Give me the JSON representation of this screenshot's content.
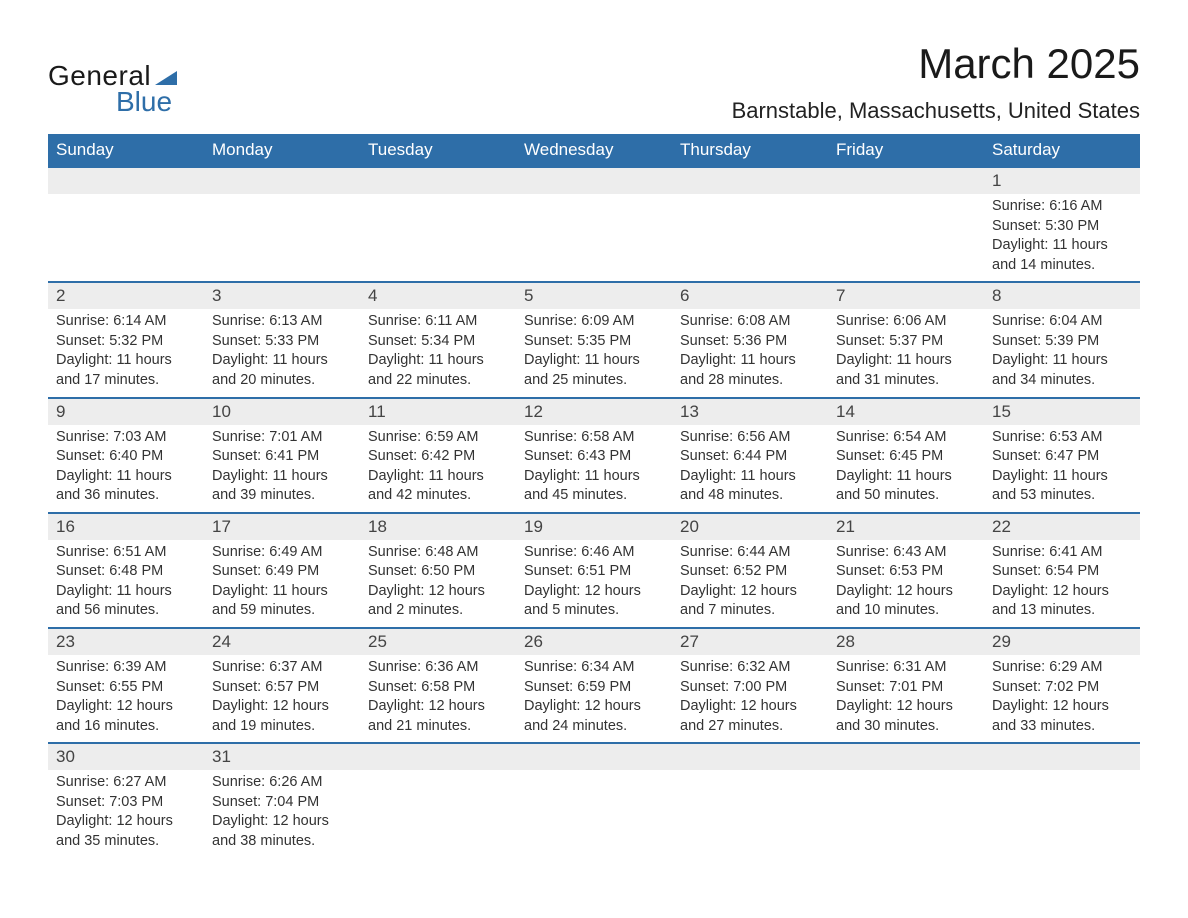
{
  "brand": {
    "word1": "General",
    "word2": "Blue",
    "accent_color": "#2e6ea8"
  },
  "title": "March 2025",
  "location": "Barnstable, Massachusetts, United States",
  "colors": {
    "header_bg": "#2e6ea8",
    "header_text": "#ffffff",
    "daynum_bg": "#ededed",
    "row_border": "#2e6ea8",
    "body_text": "#333333",
    "page_bg": "#ffffff"
  },
  "day_headers": [
    "Sunday",
    "Monday",
    "Tuesday",
    "Wednesday",
    "Thursday",
    "Friday",
    "Saturday"
  ],
  "weeks": [
    [
      null,
      null,
      null,
      null,
      null,
      null,
      {
        "n": "1",
        "sunrise": "6:16 AM",
        "sunset": "5:30 PM",
        "dl1": "Daylight: 11 hours",
        "dl2": "and 14 minutes."
      }
    ],
    [
      {
        "n": "2",
        "sunrise": "6:14 AM",
        "sunset": "5:32 PM",
        "dl1": "Daylight: 11 hours",
        "dl2": "and 17 minutes."
      },
      {
        "n": "3",
        "sunrise": "6:13 AM",
        "sunset": "5:33 PM",
        "dl1": "Daylight: 11 hours",
        "dl2": "and 20 minutes."
      },
      {
        "n": "4",
        "sunrise": "6:11 AM",
        "sunset": "5:34 PM",
        "dl1": "Daylight: 11 hours",
        "dl2": "and 22 minutes."
      },
      {
        "n": "5",
        "sunrise": "6:09 AM",
        "sunset": "5:35 PM",
        "dl1": "Daylight: 11 hours",
        "dl2": "and 25 minutes."
      },
      {
        "n": "6",
        "sunrise": "6:08 AM",
        "sunset": "5:36 PM",
        "dl1": "Daylight: 11 hours",
        "dl2": "and 28 minutes."
      },
      {
        "n": "7",
        "sunrise": "6:06 AM",
        "sunset": "5:37 PM",
        "dl1": "Daylight: 11 hours",
        "dl2": "and 31 minutes."
      },
      {
        "n": "8",
        "sunrise": "6:04 AM",
        "sunset": "5:39 PM",
        "dl1": "Daylight: 11 hours",
        "dl2": "and 34 minutes."
      }
    ],
    [
      {
        "n": "9",
        "sunrise": "7:03 AM",
        "sunset": "6:40 PM",
        "dl1": "Daylight: 11 hours",
        "dl2": "and 36 minutes."
      },
      {
        "n": "10",
        "sunrise": "7:01 AM",
        "sunset": "6:41 PM",
        "dl1": "Daylight: 11 hours",
        "dl2": "and 39 minutes."
      },
      {
        "n": "11",
        "sunrise": "6:59 AM",
        "sunset": "6:42 PM",
        "dl1": "Daylight: 11 hours",
        "dl2": "and 42 minutes."
      },
      {
        "n": "12",
        "sunrise": "6:58 AM",
        "sunset": "6:43 PM",
        "dl1": "Daylight: 11 hours",
        "dl2": "and 45 minutes."
      },
      {
        "n": "13",
        "sunrise": "6:56 AM",
        "sunset": "6:44 PM",
        "dl1": "Daylight: 11 hours",
        "dl2": "and 48 minutes."
      },
      {
        "n": "14",
        "sunrise": "6:54 AM",
        "sunset": "6:45 PM",
        "dl1": "Daylight: 11 hours",
        "dl2": "and 50 minutes."
      },
      {
        "n": "15",
        "sunrise": "6:53 AM",
        "sunset": "6:47 PM",
        "dl1": "Daylight: 11 hours",
        "dl2": "and 53 minutes."
      }
    ],
    [
      {
        "n": "16",
        "sunrise": "6:51 AM",
        "sunset": "6:48 PM",
        "dl1": "Daylight: 11 hours",
        "dl2": "and 56 minutes."
      },
      {
        "n": "17",
        "sunrise": "6:49 AM",
        "sunset": "6:49 PM",
        "dl1": "Daylight: 11 hours",
        "dl2": "and 59 minutes."
      },
      {
        "n": "18",
        "sunrise": "6:48 AM",
        "sunset": "6:50 PM",
        "dl1": "Daylight: 12 hours",
        "dl2": "and 2 minutes."
      },
      {
        "n": "19",
        "sunrise": "6:46 AM",
        "sunset": "6:51 PM",
        "dl1": "Daylight: 12 hours",
        "dl2": "and 5 minutes."
      },
      {
        "n": "20",
        "sunrise": "6:44 AM",
        "sunset": "6:52 PM",
        "dl1": "Daylight: 12 hours",
        "dl2": "and 7 minutes."
      },
      {
        "n": "21",
        "sunrise": "6:43 AM",
        "sunset": "6:53 PM",
        "dl1": "Daylight: 12 hours",
        "dl2": "and 10 minutes."
      },
      {
        "n": "22",
        "sunrise": "6:41 AM",
        "sunset": "6:54 PM",
        "dl1": "Daylight: 12 hours",
        "dl2": "and 13 minutes."
      }
    ],
    [
      {
        "n": "23",
        "sunrise": "6:39 AM",
        "sunset": "6:55 PM",
        "dl1": "Daylight: 12 hours",
        "dl2": "and 16 minutes."
      },
      {
        "n": "24",
        "sunrise": "6:37 AM",
        "sunset": "6:57 PM",
        "dl1": "Daylight: 12 hours",
        "dl2": "and 19 minutes."
      },
      {
        "n": "25",
        "sunrise": "6:36 AM",
        "sunset": "6:58 PM",
        "dl1": "Daylight: 12 hours",
        "dl2": "and 21 minutes."
      },
      {
        "n": "26",
        "sunrise": "6:34 AM",
        "sunset": "6:59 PM",
        "dl1": "Daylight: 12 hours",
        "dl2": "and 24 minutes."
      },
      {
        "n": "27",
        "sunrise": "6:32 AM",
        "sunset": "7:00 PM",
        "dl1": "Daylight: 12 hours",
        "dl2": "and 27 minutes."
      },
      {
        "n": "28",
        "sunrise": "6:31 AM",
        "sunset": "7:01 PM",
        "dl1": "Daylight: 12 hours",
        "dl2": "and 30 minutes."
      },
      {
        "n": "29",
        "sunrise": "6:29 AM",
        "sunset": "7:02 PM",
        "dl1": "Daylight: 12 hours",
        "dl2": "and 33 minutes."
      }
    ],
    [
      {
        "n": "30",
        "sunrise": "6:27 AM",
        "sunset": "7:03 PM",
        "dl1": "Daylight: 12 hours",
        "dl2": "and 35 minutes."
      },
      {
        "n": "31",
        "sunrise": "6:26 AM",
        "sunset": "7:04 PM",
        "dl1": "Daylight: 12 hours",
        "dl2": "and 38 minutes."
      },
      null,
      null,
      null,
      null,
      null
    ]
  ],
  "labels": {
    "sunrise": "Sunrise: ",
    "sunset": "Sunset: "
  }
}
